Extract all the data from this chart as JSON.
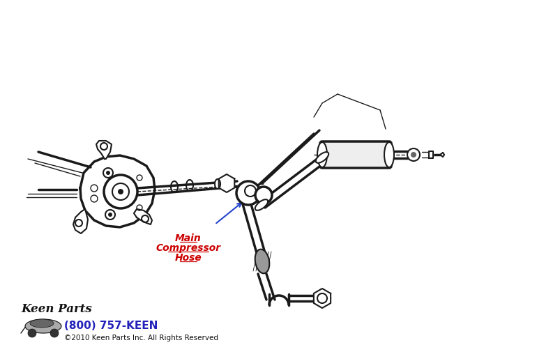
{
  "bg_color": "#ffffff",
  "line_color": "#1a1a1a",
  "label_color": "#cc0000",
  "phone_color": "#2222bb",
  "arrow_color": "#2244cc",
  "label_lines": [
    "Main",
    "Compressor",
    "Hose"
  ],
  "phone_text": "(800) 757-KEEN",
  "copyright_text": "©2010 Keen Parts Inc. All Rights Reserved",
  "lw": 1.5,
  "lw_thick": 2.5,
  "lw_thin": 1.0
}
